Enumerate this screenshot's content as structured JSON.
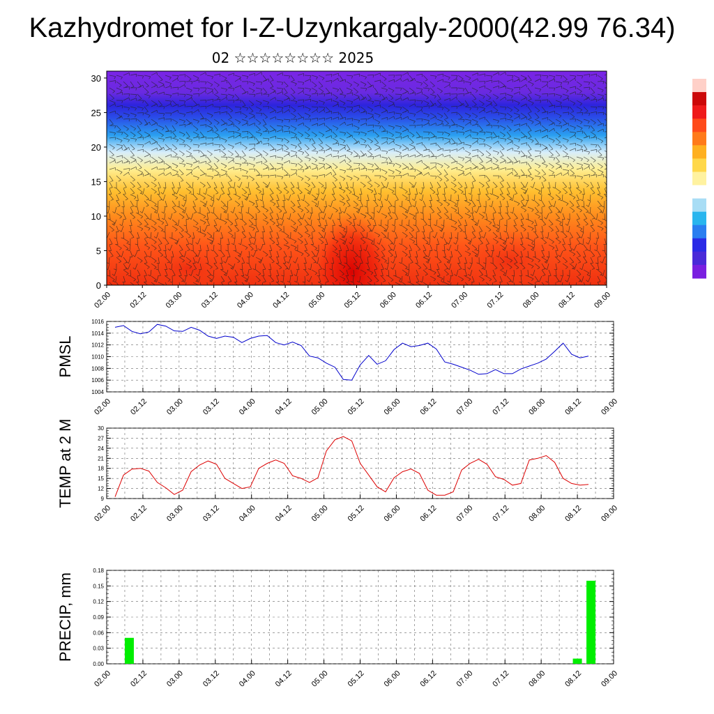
{
  "title": "Kazhydromet for I-Z-Uzynkargaly-2000(42.99 76.34)",
  "subtitle": "02 ☆☆☆☆☆☆☆☆ 2025",
  "chart_data": [
    {
      "type": "heatmap",
      "name": "vertical-section",
      "title": "",
      "xlabel": "",
      "ylabel": "",
      "x_ticks": [
        "02.00",
        "02.12",
        "03.00",
        "03.12",
        "04.00",
        "04.12",
        "05.00",
        "05.12",
        "06.00",
        "06.12",
        "07.00",
        "07.12",
        "08.00",
        "08.12",
        "09.00"
      ],
      "y_ticks": [
        0,
        5,
        10,
        15,
        20,
        25,
        30
      ],
      "ylim": [
        0,
        31
      ],
      "colorbar": [
        "#7a1fe0",
        "#4a2ad8",
        "#2a2ae6",
        "#2a7ef0",
        "#29b5ee",
        "#a8ddf5",
        "#ffffff",
        "#fff2a0",
        "#ffd84a",
        "#ffb020",
        "#ff7a1a",
        "#ff4a1a",
        "#ef1a1a",
        "#cc0808",
        "#ffd0c8"
      ],
      "overlay": "wind barbs"
    },
    {
      "type": "line",
      "name": "pmsl",
      "ylabel": "PMSL",
      "x_ticks": [
        "02.00",
        "02.12",
        "03.00",
        "03.12",
        "04.00",
        "04.12",
        "05.00",
        "05.12",
        "06.00",
        "06.12",
        "07.00",
        "07.12",
        "08.00",
        "08.12",
        "09.00"
      ],
      "y_ticks": [
        1004,
        1006,
        1008,
        1010,
        1012,
        1014,
        1016
      ],
      "ylim": [
        1004,
        1016
      ],
      "series_color": "#0000cc",
      "values": [
        1015.0,
        1015.3,
        1014.3,
        1013.9,
        1014.2,
        1015.5,
        1015.2,
        1014.4,
        1014.3,
        1015.0,
        1014.5,
        1013.5,
        1013.1,
        1013.5,
        1013.3,
        1012.4,
        1013.1,
        1013.5,
        1013.6,
        1012.4,
        1012.0,
        1012.5,
        1011.9,
        1010.1,
        1009.8,
        1008.9,
        1008.2,
        1006.1,
        1006.0,
        1008.6,
        1010.2,
        1008.7,
        1009.3,
        1011.2,
        1012.3,
        1011.7,
        1011.9,
        1012.3,
        1011.3,
        1009.1,
        1008.7,
        1008.2,
        1007.7,
        1007.0,
        1007.1,
        1007.8,
        1007.1,
        1007.1,
        1007.9,
        1008.4,
        1008.9,
        1009.6,
        1010.9,
        1012.3,
        1010.4,
        1009.8,
        1010.1
      ]
    },
    {
      "type": "line",
      "name": "temp-2m",
      "ylabel": "TEMP at 2 M",
      "x_ticks": [
        "02.00",
        "02.12",
        "03.00",
        "03.12",
        "04.00",
        "04.12",
        "05.00",
        "05.12",
        "06.00",
        "06.12",
        "07.00",
        "07.12",
        "08.00",
        "08.12",
        "09.00"
      ],
      "y_ticks": [
        9,
        12,
        15,
        18,
        21,
        24,
        27,
        30
      ],
      "ylim": [
        9,
        30
      ],
      "series_color": "#dd0000",
      "values": [
        9.5,
        16.0,
        17.8,
        18.0,
        17.2,
        13.8,
        12.2,
        10.2,
        11.5,
        17.0,
        19.0,
        20.2,
        19.2,
        15.0,
        13.5,
        12.0,
        12.5,
        18.0,
        19.5,
        20.5,
        19.5,
        15.8,
        15.0,
        13.8,
        15.2,
        23.2,
        26.5,
        27.5,
        26.2,
        19.5,
        16.0,
        12.5,
        11.0,
        15.2,
        17.0,
        17.8,
        16.5,
        11.5,
        10.0,
        10.0,
        11.0,
        17.5,
        19.5,
        20.7,
        19.2,
        15.5,
        14.7,
        13.0,
        13.5,
        20.5,
        21.0,
        21.8,
        19.8,
        15.0,
        13.5,
        13.0,
        13.2
      ]
    },
    {
      "type": "bar",
      "name": "precip",
      "ylabel": "PRECIP, mm",
      "x_ticks": [
        "02.00",
        "02.12",
        "03.00",
        "03.12",
        "04.00",
        "04.12",
        "05.00",
        "05.12",
        "06.00",
        "06.12",
        "07.00",
        "07.12",
        "08.00",
        "08.12",
        "09.00"
      ],
      "y_ticks": [
        "0.00",
        "0.03",
        "0.06",
        "0.09",
        "0.12",
        "0.15",
        "0.18"
      ],
      "ylim": [
        0,
        0.18
      ],
      "bar_color": "#00ee00",
      "bars": [
        {
          "x": 0.625,
          "value": 0.05
        },
        {
          "x": 13.0,
          "value": 0.01
        },
        {
          "x": 13.375,
          "value": 0.16
        }
      ]
    }
  ]
}
